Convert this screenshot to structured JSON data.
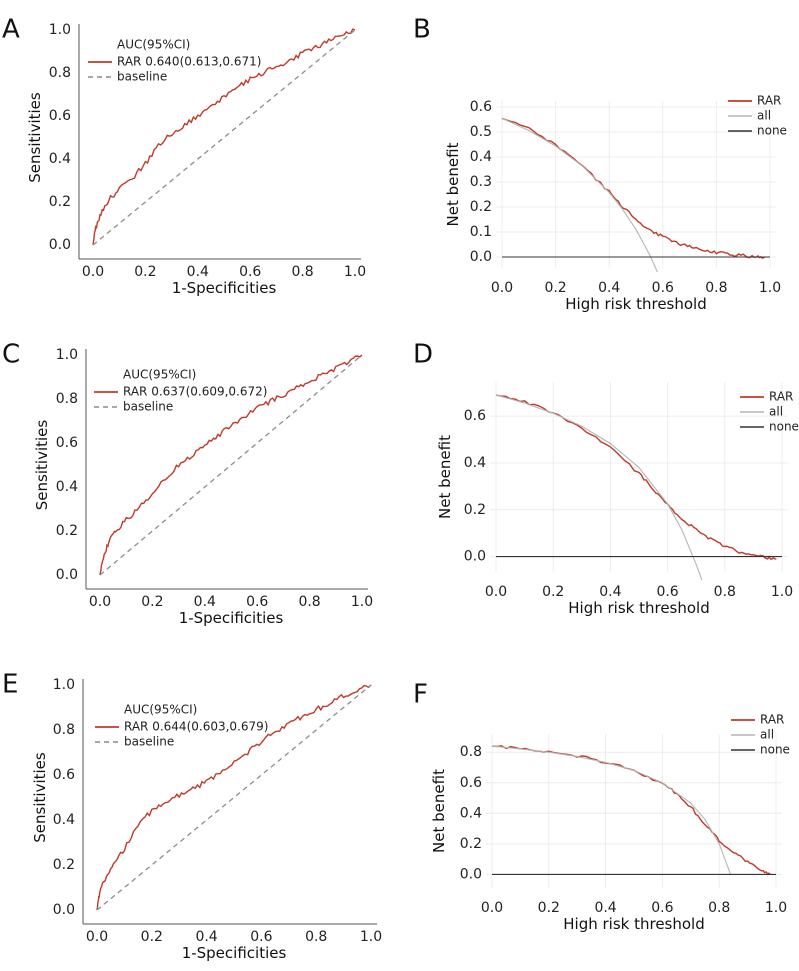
{
  "colors": {
    "model": "#c0392b",
    "baseline": "#8c8c8c",
    "all": "#b5b5b5",
    "none": "#333333",
    "grid": "#ececec",
    "axis": "#555555"
  },
  "chart_data": [
    {
      "panel": "A",
      "type": "line",
      "chart": "roc",
      "xlabel": "1-Specificities",
      "ylabel": "Sensitivities",
      "xlim": [
        0,
        1
      ],
      "ylim": [
        0,
        1
      ],
      "xticks": [
        "0.0",
        "0.2",
        "0.4",
        "0.6",
        "0.8",
        "1.0"
      ],
      "yticks": [
        "0.0",
        "0.2",
        "0.4",
        "0.6",
        "0.8",
        "1.0"
      ],
      "legend_title": "AUC(95%CI)",
      "series": [
        {
          "name": "RAR 0.640(0.613,0.671)",
          "style": "model",
          "x": [
            0,
            0.01,
            0.03,
            0.06,
            0.1,
            0.15,
            0.2,
            0.25,
            0.3,
            0.35,
            0.4,
            0.45,
            0.5,
            0.55,
            0.6,
            0.65,
            0.7,
            0.75,
            0.8,
            0.85,
            0.9,
            0.95,
            1.0
          ],
          "y": [
            0,
            0.08,
            0.15,
            0.21,
            0.26,
            0.31,
            0.38,
            0.46,
            0.52,
            0.56,
            0.6,
            0.64,
            0.69,
            0.73,
            0.77,
            0.8,
            0.83,
            0.86,
            0.89,
            0.92,
            0.95,
            0.98,
            1.0
          ]
        },
        {
          "name": "baseline",
          "style": "baseline",
          "x": [
            0,
            1
          ],
          "y": [
            0,
            1
          ]
        }
      ]
    },
    {
      "panel": "B",
      "type": "line",
      "chart": "dca",
      "xlabel": "High risk threshold",
      "ylabel": "Net benefit",
      "xlim": [
        0,
        1
      ],
      "ylim": [
        -0.02,
        0.6
      ],
      "xticks": [
        "0.0",
        "0.2",
        "0.4",
        "0.6",
        "0.8",
        "1.0"
      ],
      "yticks": [
        "0.0",
        "0.1",
        "0.2",
        "0.3",
        "0.4",
        "0.5",
        "0.6"
      ],
      "series": [
        {
          "name": "RAR",
          "style": "model",
          "x": [
            0,
            0.1,
            0.2,
            0.3,
            0.4,
            0.45,
            0.5,
            0.55,
            0.6,
            0.65,
            0.7,
            0.75,
            0.8,
            0.85,
            0.9,
            0.95,
            0.98
          ],
          "y": [
            0.555,
            0.513,
            0.448,
            0.364,
            0.26,
            0.2,
            0.15,
            0.11,
            0.08,
            0.058,
            0.042,
            0.028,
            0.018,
            0.01,
            0.006,
            0.001,
            0.0
          ]
        },
        {
          "name": "all",
          "style": "all",
          "x": [
            0,
            0.1,
            0.2,
            0.3,
            0.4,
            0.45,
            0.5,
            0.55,
            0.58
          ],
          "y": [
            0.555,
            0.506,
            0.444,
            0.364,
            0.258,
            0.191,
            0.11,
            0.011,
            -0.06
          ]
        },
        {
          "name": "none",
          "style": "none",
          "x": [
            0,
            1
          ],
          "y": [
            0,
            0
          ]
        }
      ]
    },
    {
      "panel": "C",
      "type": "line",
      "chart": "roc",
      "xlabel": "1-Specificities",
      "ylabel": "Sensitivities",
      "xlim": [
        0,
        1
      ],
      "ylim": [
        0,
        1
      ],
      "xticks": [
        "0.0",
        "0.2",
        "0.4",
        "0.6",
        "0.8",
        "1.0"
      ],
      "yticks": [
        "0.0",
        "0.2",
        "0.4",
        "0.6",
        "0.8",
        "1.0"
      ],
      "legend_title": "AUC(95%CI)",
      "series": [
        {
          "name": "RAR 0.637(0.609,0.672)",
          "style": "model",
          "x": [
            0,
            0.01,
            0.03,
            0.06,
            0.1,
            0.15,
            0.2,
            0.25,
            0.3,
            0.35,
            0.4,
            0.45,
            0.5,
            0.55,
            0.6,
            0.65,
            0.7,
            0.75,
            0.8,
            0.85,
            0.9,
            0.95,
            1.0
          ],
          "y": [
            0,
            0.07,
            0.14,
            0.2,
            0.25,
            0.31,
            0.37,
            0.44,
            0.5,
            0.54,
            0.59,
            0.63,
            0.68,
            0.72,
            0.76,
            0.79,
            0.82,
            0.85,
            0.88,
            0.91,
            0.94,
            0.97,
            1.0
          ]
        },
        {
          "name": "baseline",
          "style": "baseline",
          "x": [
            0,
            1
          ],
          "y": [
            0,
            1
          ]
        }
      ]
    },
    {
      "panel": "D",
      "type": "line",
      "chart": "dca",
      "xlabel": "High risk threshold",
      "ylabel": "Net benefit",
      "xlim": [
        0,
        1
      ],
      "ylim": [
        -0.04,
        0.72
      ],
      "xticks": [
        "0.0",
        "0.2",
        "0.4",
        "0.6",
        "0.8",
        "1.0"
      ],
      "yticks": [
        "0.0",
        "0.2",
        "0.4",
        "0.6"
      ],
      "series": [
        {
          "name": "RAR",
          "style": "model",
          "x": [
            0,
            0.1,
            0.2,
            0.3,
            0.4,
            0.5,
            0.55,
            0.6,
            0.65,
            0.7,
            0.75,
            0.8,
            0.85,
            0.9,
            0.95,
            0.98
          ],
          "y": [
            0.69,
            0.66,
            0.615,
            0.55,
            0.465,
            0.355,
            0.29,
            0.22,
            0.16,
            0.115,
            0.075,
            0.045,
            0.02,
            0.005,
            -0.005,
            -0.01
          ]
        },
        {
          "name": "all",
          "style": "all",
          "x": [
            0,
            0.1,
            0.2,
            0.3,
            0.4,
            0.5,
            0.6,
            0.65,
            0.7,
            0.72
          ],
          "y": [
            0.69,
            0.656,
            0.612,
            0.557,
            0.483,
            0.38,
            0.225,
            0.114,
            -0.033,
            -0.1
          ]
        },
        {
          "name": "none",
          "style": "none",
          "x": [
            0,
            1
          ],
          "y": [
            0,
            0
          ]
        }
      ]
    },
    {
      "panel": "E",
      "type": "line",
      "chart": "roc",
      "xlabel": "1-Specificities",
      "ylabel": "Sensitivities",
      "xlim": [
        0,
        1
      ],
      "ylim": [
        0,
        1
      ],
      "xticks": [
        "0.0",
        "0.2",
        "0.4",
        "0.6",
        "0.8",
        "1.0"
      ],
      "yticks": [
        "0.0",
        "0.2",
        "0.4",
        "0.6",
        "0.8",
        "1.0"
      ],
      "legend_title": "AUC(95%CI)",
      "series": [
        {
          "name": "RAR 0.644(0.603,0.679)",
          "style": "model",
          "x": [
            0,
            0.01,
            0.03,
            0.06,
            0.1,
            0.15,
            0.2,
            0.25,
            0.3,
            0.35,
            0.4,
            0.45,
            0.5,
            0.55,
            0.6,
            0.65,
            0.7,
            0.75,
            0.8,
            0.85,
            0.9,
            0.95,
            1.0
          ],
          "y": [
            0,
            0.08,
            0.14,
            0.2,
            0.27,
            0.38,
            0.44,
            0.48,
            0.51,
            0.54,
            0.57,
            0.61,
            0.66,
            0.7,
            0.75,
            0.79,
            0.83,
            0.86,
            0.89,
            0.92,
            0.95,
            0.98,
            1.0
          ]
        },
        {
          "name": "baseline",
          "style": "baseline",
          "x": [
            0,
            1
          ],
          "y": [
            0,
            1
          ]
        }
      ]
    },
    {
      "panel": "F",
      "type": "line",
      "chart": "dca",
      "xlabel": "High risk threshold",
      "ylabel": "Net benefit",
      "xlim": [
        0,
        1
      ],
      "ylim": [
        -0.05,
        0.88
      ],
      "xticks": [
        "0.0",
        "0.2",
        "0.4",
        "0.6",
        "0.8",
        "1.0"
      ],
      "yticks": [
        "0.0",
        "0.2",
        "0.4",
        "0.6",
        "0.8"
      ],
      "series": [
        {
          "name": "RAR",
          "style": "model",
          "x": [
            0,
            0.1,
            0.2,
            0.3,
            0.4,
            0.5,
            0.6,
            0.65,
            0.7,
            0.75,
            0.8,
            0.85,
            0.9,
            0.95,
            0.98
          ],
          "y": [
            0.84,
            0.825,
            0.805,
            0.775,
            0.735,
            0.68,
            0.595,
            0.53,
            0.44,
            0.33,
            0.22,
            0.15,
            0.08,
            0.02,
            0.0
          ]
        },
        {
          "name": "all",
          "style": "all",
          "x": [
            0,
            0.1,
            0.2,
            0.3,
            0.4,
            0.5,
            0.6,
            0.7,
            0.75,
            0.8,
            0.84
          ],
          "y": [
            0.84,
            0.822,
            0.8,
            0.771,
            0.733,
            0.68,
            0.6,
            0.467,
            0.36,
            0.2,
            0.0
          ]
        },
        {
          "name": "none",
          "style": "none",
          "x": [
            0,
            1
          ],
          "y": [
            0,
            0
          ]
        }
      ]
    }
  ]
}
